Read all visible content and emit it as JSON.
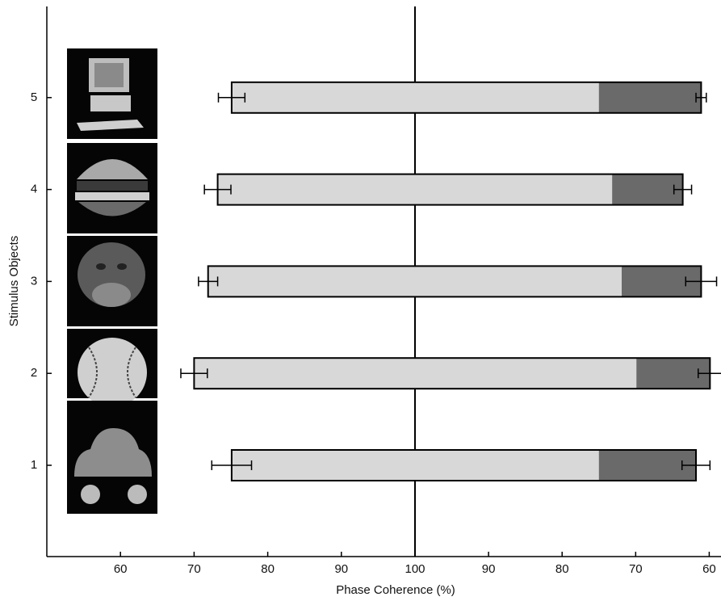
{
  "chart_data": {
    "type": "mirrored-bar",
    "x_label": "Phase Coherence (%)",
    "y_label": "Stimulus Objects",
    "categories": [
      "1",
      "2",
      "3",
      "4",
      "5"
    ],
    "xlim_left": [
      50,
      100
    ],
    "xlim_right": [
      100,
      58.4
    ],
    "xticks_left": [
      60,
      70,
      80,
      90,
      100
    ],
    "xticks_right": [
      90,
      80,
      70,
      60
    ],
    "light_color": "#d8d8d8",
    "dark_color": "#6a6a6a",
    "bars": [
      {
        "start": 75.1,
        "start_error": 2.7,
        "split": 75,
        "end": 61.8,
        "end_error": 1.9
      },
      {
        "start": 70,
        "start_error": 1.8,
        "split": 69.9,
        "end": 59.9,
        "end_error": 1.6
      },
      {
        "start": 71.9,
        "start_error": 1.3,
        "split": 71.9,
        "end": 61.1,
        "end_error": 2.1
      },
      {
        "start": 73.2,
        "start_error": 1.8,
        "split": 73.2,
        "end": 63.6,
        "end_error": 1.2
      },
      {
        "start": 75.1,
        "start_error": 1.8,
        "split": 75,
        "end": 61.1,
        "end_error": 0.7
      }
    ]
  }
}
